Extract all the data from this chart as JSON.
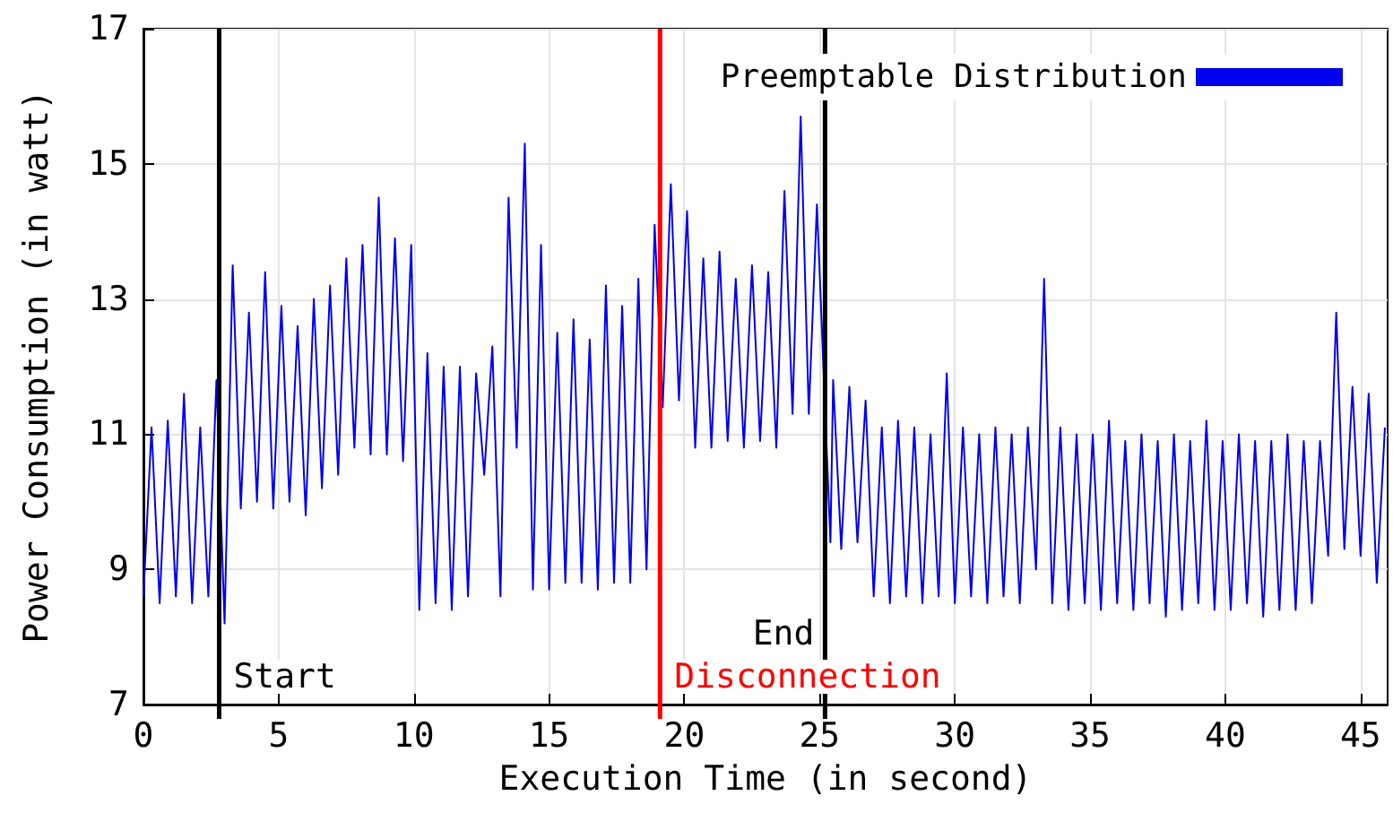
{
  "chart_data": {
    "type": "line",
    "xlabel": "Execution Time (in second)",
    "ylabel": "Power Consumption (in watt)",
    "xlim": [
      0,
      46
    ],
    "xticks": [
      0,
      5,
      10,
      15,
      20,
      25,
      30,
      35,
      40,
      45
    ],
    "ylim": [
      7,
      17
    ],
    "yticks": [
      7,
      9,
      11,
      13,
      15,
      17
    ],
    "grid": true,
    "legend": "top right",
    "marker": "none",
    "line_style": "solid",
    "ref_lines": [
      {
        "axis": "x",
        "value": 2.8,
        "label": "Start",
        "color": "#000000"
      },
      {
        "axis": "x",
        "value": 19.1,
        "label": "Disconnection",
        "color": "#ff0000"
      },
      {
        "axis": "x",
        "value": 25.2,
        "label": "End",
        "color": "#000000"
      }
    ],
    "series": [
      {
        "name": "Preemptable Distribution",
        "color": "#0000ee",
        "x": [
          0,
          0.3,
          0.6,
          0.9,
          1.2,
          1.5,
          1.8,
          2.1,
          2.4,
          2.7,
          3.0,
          3.3,
          3.6,
          3.9,
          4.2,
          4.5,
          4.8,
          5.1,
          5.4,
          5.7,
          6.0,
          6.3,
          6.6,
          6.9,
          7.2,
          7.5,
          7.8,
          8.1,
          8.4,
          8.7,
          9.0,
          9.3,
          9.6,
          9.9,
          10.2,
          10.5,
          10.8,
          11.1,
          11.4,
          11.7,
          12.0,
          12.3,
          12.6,
          12.9,
          13.2,
          13.5,
          13.8,
          14.1,
          14.4,
          14.7,
          15.0,
          15.3,
          15.6,
          15.9,
          16.2,
          16.5,
          16.8,
          17.1,
          17.4,
          17.7,
          18.0,
          18.3,
          18.6,
          18.9,
          19.2,
          19.5,
          19.8,
          20.1,
          20.4,
          20.7,
          21.0,
          21.3,
          21.6,
          21.9,
          22.2,
          22.5,
          22.8,
          23.1,
          23.4,
          23.7,
          24.0,
          24.3,
          24.6,
          24.9,
          25.4,
          25.5,
          25.8,
          26.1,
          26.4,
          26.7,
          27.0,
          27.3,
          27.6,
          27.9,
          28.2,
          28.5,
          28.8,
          29.1,
          29.4,
          29.7,
          30.0,
          30.3,
          30.6,
          30.9,
          31.2,
          31.5,
          31.8,
          32.1,
          32.4,
          32.7,
          33.0,
          33.3,
          33.6,
          33.9,
          34.2,
          34.5,
          34.8,
          35.1,
          35.4,
          35.7,
          36.0,
          36.3,
          36.6,
          36.9,
          37.2,
          37.5,
          37.8,
          38.1,
          38.4,
          38.7,
          39.0,
          39.3,
          39.6,
          39.9,
          40.2,
          40.5,
          40.8,
          41.1,
          41.4,
          41.7,
          42.0,
          42.3,
          42.6,
          42.9,
          43.2,
          43.5,
          43.8,
          44.1,
          44.4,
          44.7,
          45.0,
          45.3,
          45.6,
          45.9
        ],
        "values": [
          8.6,
          11.1,
          8.5,
          11.2,
          8.6,
          11.6,
          8.5,
          11.1,
          8.6,
          11.8,
          8.2,
          13.5,
          9.9,
          12.8,
          10.0,
          13.4,
          9.9,
          12.9,
          10.0,
          12.6,
          9.8,
          13.0,
          10.2,
          13.2,
          10.4,
          13.6,
          10.8,
          13.8,
          10.7,
          14.5,
          10.7,
          13.9,
          10.6,
          13.8,
          8.4,
          12.2,
          8.5,
          12.0,
          8.4,
          12.0,
          8.6,
          11.9,
          10.4,
          12.3,
          8.6,
          14.5,
          10.8,
          15.3,
          8.7,
          13.8,
          8.7,
          12.5,
          8.8,
          12.7,
          8.8,
          12.4,
          8.7,
          13.2,
          8.8,
          12.9,
          8.8,
          13.3,
          9.0,
          14.1,
          11.4,
          14.7,
          11.5,
          14.3,
          10.8,
          13.6,
          10.8,
          13.7,
          10.9,
          13.3,
          10.8,
          13.5,
          10.9,
          13.4,
          10.8,
          14.6,
          11.3,
          15.7,
          11.3,
          14.4,
          9.4,
          11.8,
          9.3,
          11.7,
          9.4,
          11.5,
          8.6,
          11.1,
          8.5,
          11.2,
          8.6,
          11.1,
          8.5,
          11.0,
          8.6,
          11.9,
          8.5,
          11.1,
          8.6,
          11.0,
          8.5,
          11.1,
          8.6,
          11.0,
          8.5,
          11.1,
          9.0,
          13.3,
          8.5,
          11.1,
          8.4,
          11.0,
          8.5,
          11.0,
          8.4,
          11.2,
          8.5,
          10.9,
          8.4,
          11.0,
          8.5,
          10.9,
          8.3,
          11.0,
          8.4,
          10.9,
          8.5,
          11.2,
          8.4,
          10.9,
          8.4,
          11.0,
          8.5,
          10.9,
          8.3,
          10.9,
          8.4,
          11.0,
          8.4,
          10.9,
          8.5,
          10.9,
          9.2,
          12.8,
          9.3,
          11.7,
          9.2,
          11.6,
          8.8,
          11.1
        ]
      }
    ]
  }
}
